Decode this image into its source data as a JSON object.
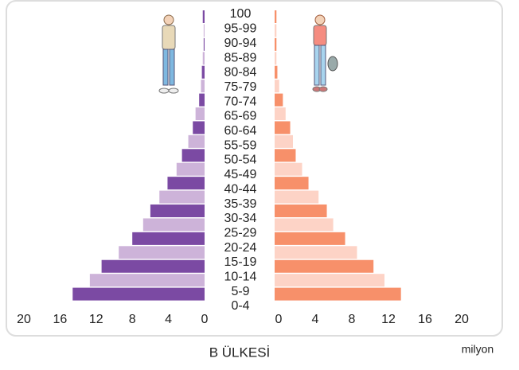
{
  "chart_data": {
    "type": "pyramid",
    "title": "B ÜLKESİ",
    "unit": "milyon",
    "categories": [
      "100",
      "95-99",
      "90-94",
      "85-89",
      "80-84",
      "75-79",
      "70-74",
      "65-69",
      "60-64",
      "55-59",
      "50-54",
      "45-49",
      "40-44",
      "35-39",
      "30-34",
      "25-29",
      "20-24",
      "15-19",
      "10-14",
      "5-9",
      "0-4"
    ],
    "series": [
      {
        "side": "left",
        "colors": [
          "#7b4aa3",
          "#cdb3d9"
        ],
        "values": [
          0.2,
          0.1,
          0.1,
          0.2,
          0.3,
          0.4,
          0.6,
          1.0,
          1.3,
          1.8,
          2.5,
          3.1,
          4.1,
          5.0,
          6.0,
          6.8,
          8.0,
          9.5,
          11.4,
          12.7,
          14.6
        ]
      },
      {
        "side": "right",
        "colors": [
          "#f7906a",
          "#fdd3c6"
        ],
        "values": [
          0.2,
          0.2,
          0.2,
          0.2,
          0.3,
          0.5,
          0.9,
          1.2,
          1.7,
          2.0,
          2.3,
          3.0,
          3.7,
          4.8,
          5.7,
          6.4,
          7.7,
          9.0,
          10.8,
          12.0,
          13.8
        ]
      }
    ],
    "xlim": [
      0,
      20
    ],
    "xticks": [
      0,
      4,
      8,
      12,
      16,
      20
    ]
  }
}
